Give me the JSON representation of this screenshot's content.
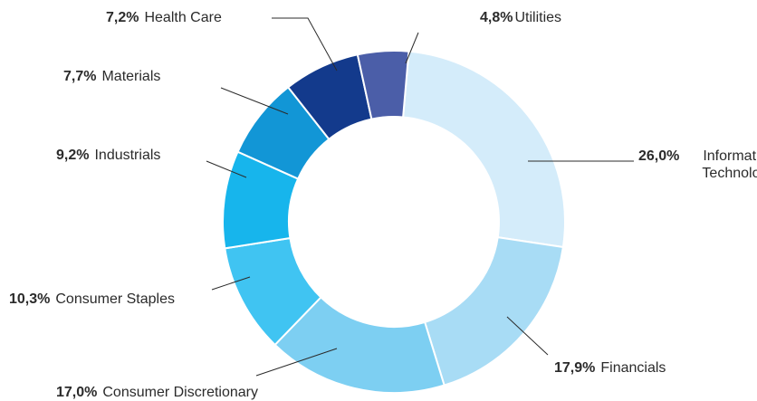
{
  "chart_data": {
    "type": "donut",
    "categories": [
      "Information Technology",
      "Financials",
      "Consumer Discretionary",
      "Consumer Staples",
      "Industrials",
      "Materials",
      "Health Care",
      "Utilities"
    ],
    "values": [
      26.0,
      17.9,
      17.0,
      10.3,
      9.2,
      7.7,
      7.2,
      4.8
    ],
    "value_labels": [
      "26,0%",
      "17,9%",
      "17,0%",
      "10,3%",
      "9,2%",
      "7,7%",
      "7,2%",
      "4,8%"
    ],
    "colors": [
      "#d4ecfa",
      "#a8dcf5",
      "#7dcff2",
      "#40c4f2",
      "#17b5ec",
      "#1296d6",
      "#133a8c",
      "#4b5ea8"
    ]
  }
}
